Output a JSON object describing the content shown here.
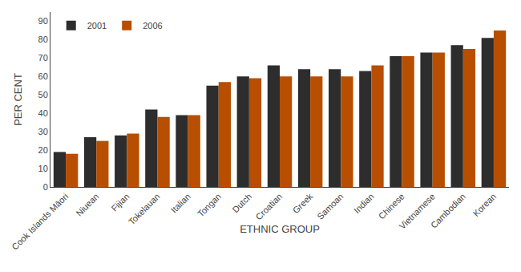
{
  "chart_data": {
    "type": "bar",
    "xlabel": "ETHNIC GROUP",
    "ylabel": "PER CENT",
    "categories": [
      "Cook Islands Māori",
      "Niuean",
      "Fijian",
      "Tokelauan",
      "Italian",
      "Tongan",
      "Dutch",
      "Croatian",
      "Greek",
      "Samoan",
      "Indian",
      "Chinese",
      "Vietnamese",
      "Cambodian",
      "Korean"
    ],
    "series": [
      {
        "name": "2001",
        "color": "#2d2d2d",
        "values": [
          19,
          27,
          28,
          42,
          39,
          55,
          60,
          66,
          64,
          64,
          63,
          71,
          73,
          77,
          81
        ]
      },
      {
        "name": "2006",
        "color": "#b84e00",
        "values": [
          18,
          25,
          29,
          38,
          39,
          57,
          59,
          60,
          60,
          60,
          66,
          71,
          73,
          75,
          85
        ]
      }
    ],
    "ylim": [
      0,
      95
    ],
    "yticks": [
      0,
      10,
      20,
      30,
      40,
      50,
      60,
      70,
      80,
      90
    ],
    "grid": false,
    "legend": "upper left"
  }
}
